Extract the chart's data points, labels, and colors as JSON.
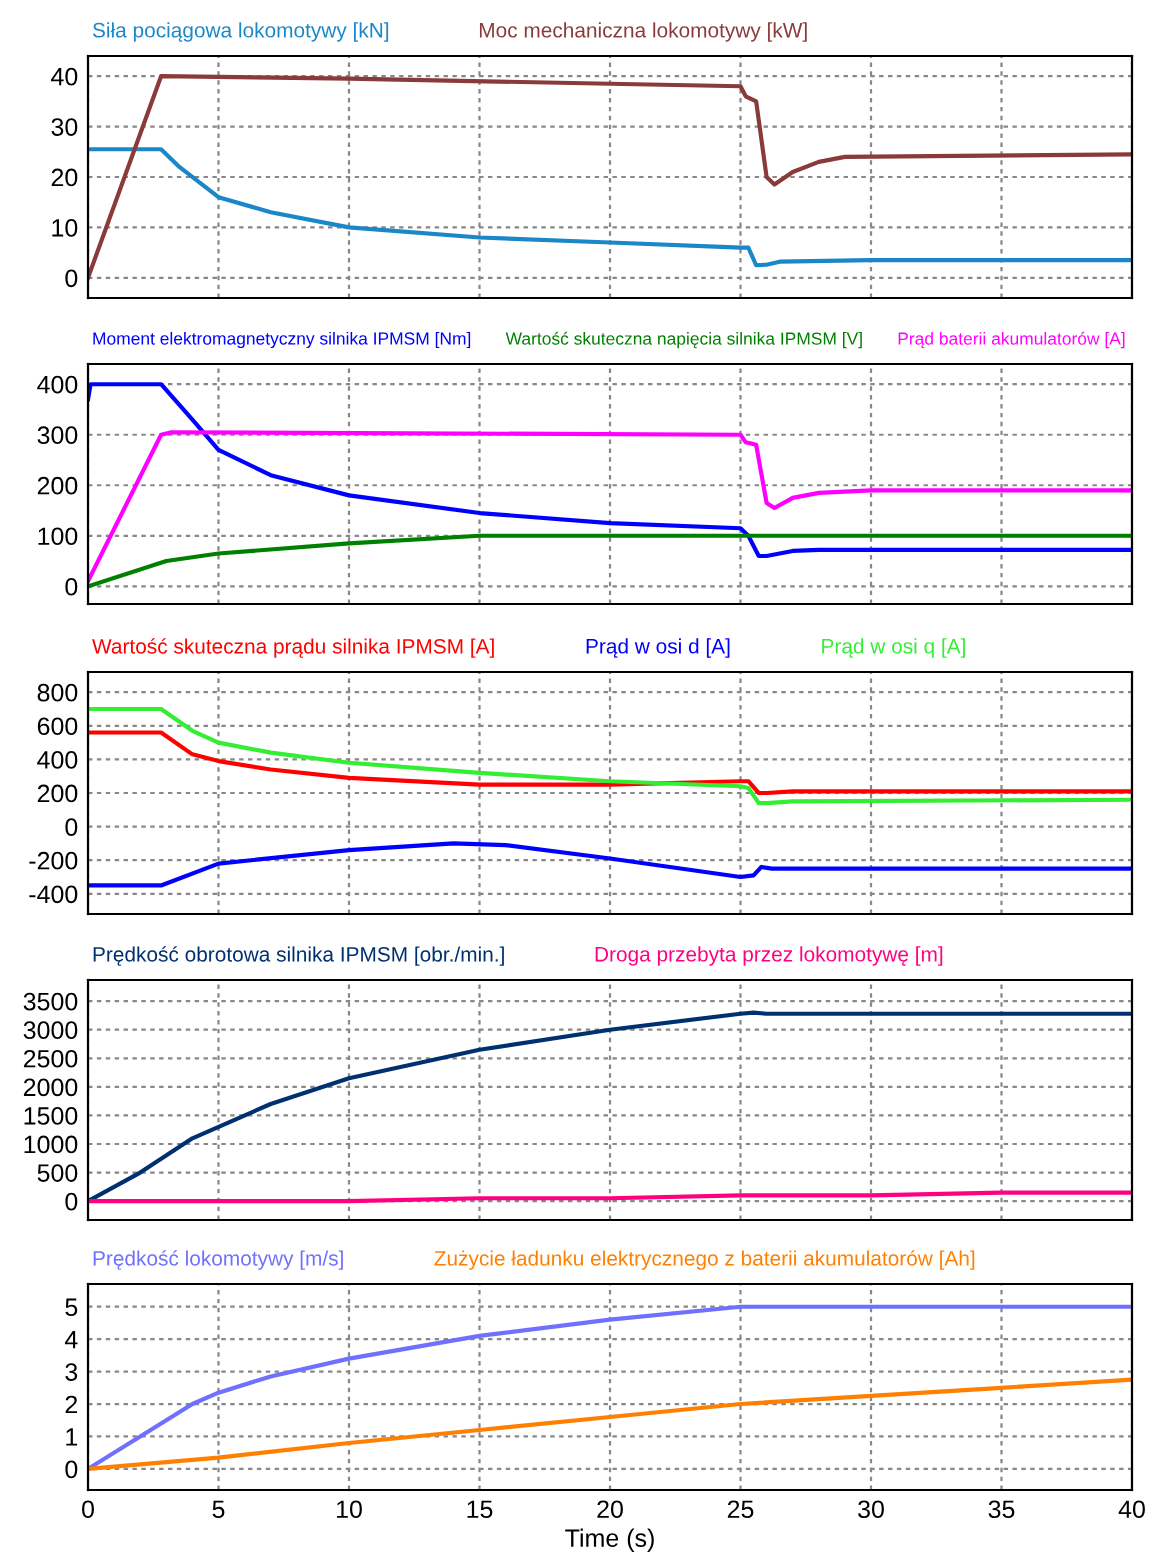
{
  "chart_data": [
    {
      "type": "line",
      "legend": "top",
      "grid": true,
      "tick_labels": "y",
      "xlim": [
        0,
        40
      ],
      "xticks": [
        0,
        5,
        10,
        15,
        20,
        25,
        30,
        35,
        40
      ],
      "ylim": [
        -4,
        44
      ],
      "yticks": [
        0,
        10,
        20,
        30,
        40
      ],
      "series": [
        {
          "name": "Siła pociągowa lokomotywy [kN]",
          "color": "#1a87c9",
          "x": [
            0,
            2.8,
            3.5,
            5,
            7,
            10,
            15,
            20,
            25,
            25.3,
            25.6,
            26,
            26.5,
            30,
            40
          ],
          "values": [
            25.5,
            25.5,
            22,
            16,
            13,
            10,
            8,
            7,
            6,
            6,
            2.5,
            2.6,
            3.2,
            3.5,
            3.5
          ]
        },
        {
          "name": "Moc mechaniczna lokomotywy [kW]",
          "color": "#8b3a3a",
          "x": [
            0,
            2.8,
            10,
            20,
            25,
            25.2,
            25.6,
            26,
            26.3,
            27,
            28,
            29,
            40
          ],
          "values": [
            0,
            40,
            39.5,
            38.5,
            38,
            36,
            35,
            20,
            18.5,
            21,
            23,
            24,
            24.5
          ]
        }
      ]
    },
    {
      "type": "line",
      "legend": "top",
      "grid": true,
      "tick_labels": "y",
      "xlim": [
        0,
        40
      ],
      "xticks": [
        0,
        5,
        10,
        15,
        20,
        25,
        30,
        35,
        40
      ],
      "ylim": [
        -35,
        440
      ],
      "yticks": [
        0,
        100,
        200,
        300,
        400
      ],
      "series": [
        {
          "name": "Moment elektromagnetyczny silnika IPMSM [Nm]",
          "color": "#0000ff",
          "x": [
            0,
            0.1,
            2.8,
            4,
            5,
            7,
            10,
            15,
            20,
            25,
            25.3,
            25.7,
            26,
            27,
            28,
            40
          ],
          "values": [
            370,
            400,
            400,
            330,
            270,
            220,
            180,
            145,
            125,
            115,
            100,
            60,
            60,
            70,
            72,
            72
          ]
        },
        {
          "name": "Wartość skuteczna napięcia silnika IPMSM [V]",
          "color": "#008000",
          "x": [
            0,
            3,
            5,
            10,
            15,
            20,
            25,
            40
          ],
          "values": [
            0,
            50,
            65,
            85,
            100,
            100,
            100,
            100
          ]
        },
        {
          "name": "Prąd baterii akumulatorów [A]",
          "color": "#ff00ff",
          "x": [
            0,
            2.8,
            3.2,
            25,
            25.2,
            25.6,
            26,
            26.3,
            27,
            28,
            30,
            40
          ],
          "values": [
            10,
            300,
            305,
            300,
            285,
            280,
            165,
            155,
            175,
            185,
            190,
            190
          ]
        }
      ]
    },
    {
      "type": "line",
      "legend": "top",
      "grid": true,
      "tick_labels": "y",
      "xlim": [
        0,
        40
      ],
      "xticks": [
        0,
        5,
        10,
        15,
        20,
        25,
        30,
        35,
        40
      ],
      "ylim": [
        -520,
        920
      ],
      "yticks": [
        -400,
        -200,
        0,
        200,
        400,
        600,
        800
      ],
      "series": [
        {
          "name": "Wartość skuteczna prądu silnika IPMSM [A]",
          "color": "#ff0000",
          "x": [
            0,
            2.8,
            4,
            5,
            7,
            10,
            15,
            17,
            20,
            25,
            25.3,
            25.7,
            26,
            27,
            40
          ],
          "values": [
            560,
            560,
            430,
            390,
            340,
            290,
            250,
            250,
            250,
            270,
            270,
            200,
            200,
            210,
            210
          ]
        },
        {
          "name": "Prąd w osi d [A]",
          "color": "#0000ff",
          "x": [
            0,
            2.8,
            5,
            10,
            14,
            16,
            20,
            25,
            25.5,
            25.8,
            26.2,
            40
          ],
          "values": [
            -350,
            -350,
            -220,
            -140,
            -100,
            -110,
            -190,
            -300,
            -290,
            -240,
            -250,
            -250
          ]
        },
        {
          "name": "Prąd w osi q [A]",
          "color": "#33ee33",
          "x": [
            0,
            2.8,
            4,
            5,
            7,
            10,
            15,
            20,
            25,
            25.3,
            25.7,
            26,
            27,
            40
          ],
          "values": [
            700,
            700,
            570,
            500,
            440,
            380,
            320,
            270,
            240,
            230,
            140,
            140,
            150,
            160
          ]
        }
      ]
    },
    {
      "type": "line",
      "legend": "top",
      "grid": true,
      "tick_labels": "y",
      "xlim": [
        0,
        40
      ],
      "xticks": [
        0,
        5,
        10,
        15,
        20,
        25,
        30,
        35,
        40
      ],
      "ylim": [
        -330,
        3870
      ],
      "yticks": [
        0,
        500,
        1000,
        1500,
        2000,
        2500,
        3000,
        3500
      ],
      "series": [
        {
          "name": "Prędkość obrotowa silnika IPMSM [obr./min.]",
          "color": "#003070",
          "x": [
            0,
            2,
            4,
            7,
            10,
            15,
            20,
            25,
            25.5,
            26,
            40
          ],
          "values": [
            0,
            500,
            1100,
            1700,
            2150,
            2650,
            3000,
            3280,
            3300,
            3280,
            3280
          ]
        },
        {
          "name": "Droga przebyta przez lokomotywę [m]",
          "color": "#ff0080",
          "x": [
            0,
            10,
            15,
            20,
            25,
            30,
            35,
            40
          ],
          "values": [
            0,
            0,
            50,
            50,
            100,
            100,
            150,
            150
          ]
        }
      ]
    },
    {
      "type": "line",
      "legend": "top",
      "grid": true,
      "xlabel": "Time (s)",
      "xlim": [
        0,
        40
      ],
      "xticks": [
        0,
        5,
        10,
        15,
        20,
        25,
        30,
        35,
        40
      ],
      "ylim": [
        -0.65,
        5.7
      ],
      "yticks": [
        0,
        1,
        2,
        3,
        4,
        5
      ],
      "series": [
        {
          "name": "Prędkość lokomotywy [m/s]",
          "color": "#7070ff",
          "x": [
            0,
            2,
            4,
            5,
            7,
            10,
            15,
            20,
            25,
            40
          ],
          "values": [
            0,
            1.0,
            2.0,
            2.35,
            2.85,
            3.4,
            4.1,
            4.6,
            5.0,
            5.0
          ]
        },
        {
          "name": "Zużycie ładunku elektrycznego z baterii akumulatorów [Ah]",
          "color": "#ff8000",
          "x": [
            0,
            5,
            10,
            15,
            20,
            25,
            30,
            35,
            40
          ],
          "values": [
            0,
            0.35,
            0.8,
            1.2,
            1.6,
            2.0,
            2.25,
            2.5,
            2.75
          ]
        }
      ]
    }
  ]
}
